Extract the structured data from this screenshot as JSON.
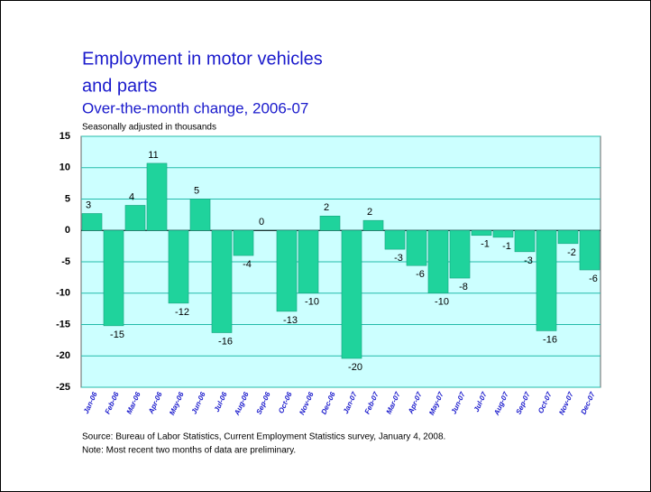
{
  "chart_data": {
    "type": "bar",
    "title": [
      "Employment in motor vehicles",
      "and parts"
    ],
    "subtitle": "Over-the-month change, 2006-07",
    "y_axis_label": "Seasonally adjusted in thousands",
    "source": "Source:  Bureau of Labor Statistics, Current Employment Statistics survey, January 4, 2008.",
    "note": "Note:  Most recent two months of data are preliminary.",
    "categories": [
      "Jan-06",
      "Feb-06",
      "Mar-06",
      "Apr-06",
      "May-06",
      "Jun-06",
      "Jul-06",
      "Aug-06",
      "Sep-06",
      "Oct-06",
      "Nov-06",
      "Dec-06",
      "Jan-07",
      "Feb-07",
      "Mar-07",
      "Apr-07",
      "May-07",
      "Jun-07",
      "Jul-07",
      "Aug-07",
      "Sep-07",
      "Oct-07",
      "Nov-07",
      "Dec-07"
    ],
    "values": [
      2.7,
      -15.2,
      4,
      10.7,
      -11.6,
      5,
      -16.3,
      -4,
      0,
      -12.9,
      -10,
      2.3,
      -20.4,
      1.6,
      -3,
      -5.6,
      -10,
      -7.6,
      -0.8,
      -1.1,
      -3.4,
      -16,
      -2.1,
      -6.3
    ],
    "value_labels": [
      "3",
      "-15",
      "4",
      "11",
      "-12",
      "5",
      "-16",
      "-4",
      "0",
      "-13",
      "-10",
      "2",
      "-20",
      "2",
      "-3",
      "-6",
      "-10",
      "-8",
      "-1",
      "-1",
      "-3",
      "-16",
      "-2",
      "-6"
    ],
    "color": "#1fd39c",
    "plot_background": "#ccffff",
    "grid": true,
    "ylim": [
      -25,
      15
    ],
    "yticks": [
      15,
      10,
      5,
      0,
      -5,
      -10,
      -15,
      -20,
      -25
    ]
  }
}
